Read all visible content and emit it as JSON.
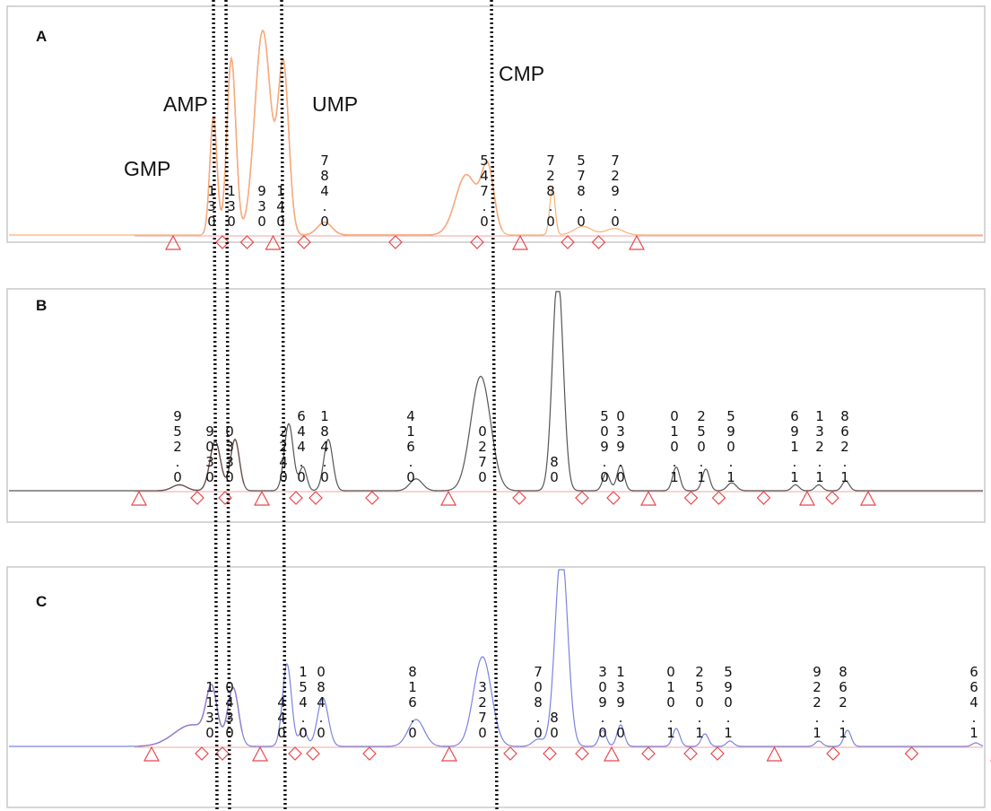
{
  "chart_data": {
    "type": "line",
    "panels": [
      {
        "panel": "A",
        "color": "#f7b27a",
        "fill_color": "#ee4a3a",
        "compound_labels": [
          "GMP",
          "AMP",
          "UMP",
          "CMP"
        ],
        "peaks": [
          {
            "x": 238,
            "h": 0.55,
            "w": 4
          },
          {
            "x": 258,
            "h": 0.82,
            "w": 5
          },
          {
            "x": 293,
            "h": 0.95,
            "w": 9
          },
          {
            "x": 316,
            "h": 0.78,
            "w": 6
          },
          {
            "x": 362,
            "h": 0.06,
            "w": 8
          },
          {
            "x": 520,
            "h": 0.28,
            "w": 12
          },
          {
            "x": 544,
            "h": 0.3,
            "w": 7
          },
          {
            "x": 616,
            "h": 0.22,
            "w": 3
          },
          {
            "x": 650,
            "h": 0.04,
            "w": 10
          },
          {
            "x": 685,
            "h": 0.03,
            "w": 10
          }
        ],
        "vertical_labels": [
          {
            "x": 236,
            "text": "130"
          },
          {
            "x": 258,
            "text": "130"
          },
          {
            "x": 292,
            "text": "930"
          },
          {
            "x": 313,
            "text": "140"
          },
          {
            "x": 362,
            "text": "784.0"
          },
          {
            "x": 540,
            "text": "547.0"
          },
          {
            "x": 614,
            "text": "728.0"
          },
          {
            "x": 648,
            "text": "578.0"
          },
          {
            "x": 686,
            "text": "729.0"
          }
        ]
      },
      {
        "panel": "B",
        "color": "#555555",
        "fill_color": "#ee4a3a",
        "compound_labels": [],
        "peaks": [
          {
            "x": 200,
            "h": 0.03,
            "w": 8
          },
          {
            "x": 240,
            "h": 0.25,
            "w": 6
          },
          {
            "x": 262,
            "h": 0.26,
            "w": 5
          },
          {
            "x": 322,
            "h": 0.34,
            "w": 5
          },
          {
            "x": 338,
            "h": 0.12,
            "w": 4
          },
          {
            "x": 366,
            "h": 0.26,
            "w": 5
          },
          {
            "x": 464,
            "h": 0.06,
            "w": 7
          },
          {
            "x": 536,
            "h": 0.58,
            "w": 11
          },
          {
            "x": 622,
            "h": 1.1,
            "w": 6
          },
          {
            "x": 676,
            "h": 0.09,
            "w": 4
          },
          {
            "x": 692,
            "h": 0.13,
            "w": 4
          },
          {
            "x": 754,
            "h": 0.12,
            "w": 4
          },
          {
            "x": 787,
            "h": 0.11,
            "w": 4
          },
          {
            "x": 816,
            "h": 0.04,
            "w": 5
          },
          {
            "x": 887,
            "h": 0.03,
            "w": 4
          },
          {
            "x": 913,
            "h": 0.03,
            "w": 4
          },
          {
            "x": 943,
            "h": 0.05,
            "w": 4
          }
        ],
        "vertical_labels": [
          {
            "x": 198,
            "text": "952.0"
          },
          {
            "x": 234,
            "text": "9030"
          },
          {
            "x": 256,
            "text": "0330"
          },
          {
            "x": 316,
            "text": "2240"
          },
          {
            "x": 336,
            "text": "644.0"
          },
          {
            "x": 362,
            "text": "184.0"
          },
          {
            "x": 458,
            "text": "416.0"
          },
          {
            "x": 538,
            "text": "0270"
          },
          {
            "x": 618,
            "text": "80"
          },
          {
            "x": 674,
            "text": "509.0"
          },
          {
            "x": 692,
            "text": "039.0"
          },
          {
            "x": 752,
            "text": "010.1"
          },
          {
            "x": 782,
            "text": "250.1"
          },
          {
            "x": 815,
            "text": "590.1"
          },
          {
            "x": 886,
            "text": "691.1"
          },
          {
            "x": 914,
            "text": "132.1"
          },
          {
            "x": 942,
            "text": "862.1"
          }
        ]
      },
      {
        "panel": "C",
        "color": "#7b83e0",
        "fill_color": "#ee4a3a",
        "compound_labels": [],
        "peaks": [
          {
            "x": 214,
            "h": 0.12,
            "w": 20
          },
          {
            "x": 236,
            "h": 0.28,
            "w": 6
          },
          {
            "x": 260,
            "h": 0.32,
            "w": 6
          },
          {
            "x": 320,
            "h": 0.46,
            "w": 5
          },
          {
            "x": 338,
            "h": 0.1,
            "w": 4
          },
          {
            "x": 360,
            "h": 0.27,
            "w": 6
          },
          {
            "x": 464,
            "h": 0.15,
            "w": 9
          },
          {
            "x": 538,
            "h": 0.5,
            "w": 10
          },
          {
            "x": 600,
            "h": 0.04,
            "w": 6
          },
          {
            "x": 626,
            "h": 1.1,
            "w": 7
          },
          {
            "x": 672,
            "h": 0.09,
            "w": 4
          },
          {
            "x": 692,
            "h": 0.12,
            "w": 4
          },
          {
            "x": 754,
            "h": 0.1,
            "w": 4
          },
          {
            "x": 786,
            "h": 0.07,
            "w": 4
          },
          {
            "x": 814,
            "h": 0.03,
            "w": 4
          },
          {
            "x": 913,
            "h": 0.03,
            "w": 4
          },
          {
            "x": 945,
            "h": 0.09,
            "w": 4
          },
          {
            "x": 1088,
            "h": 0.02,
            "w": 4
          }
        ],
        "vertical_labels": [
          {
            "x": 234,
            "text": "1130"
          },
          {
            "x": 256,
            "text": "0430"
          },
          {
            "x": 314,
            "text": "440"
          },
          {
            "x": 338,
            "text": "154.0"
          },
          {
            "x": 358,
            "text": "084.0"
          },
          {
            "x": 460,
            "text": "816.0"
          },
          {
            "x": 538,
            "text": "3270"
          },
          {
            "x": 600,
            "text": "708.0"
          },
          {
            "x": 618,
            "text": "80"
          },
          {
            "x": 672,
            "text": "309.0"
          },
          {
            "x": 692,
            "text": "139.0"
          },
          {
            "x": 748,
            "text": "010.1"
          },
          {
            "x": 780,
            "text": "250.1"
          },
          {
            "x": 812,
            "text": "590.1"
          },
          {
            "x": 911,
            "text": "922.1"
          },
          {
            "x": 940,
            "text": "862.1"
          },
          {
            "x": 1086,
            "text": "664.1"
          }
        ]
      }
    ],
    "reference_lines_x": [
      238,
      252,
      314,
      548
    ],
    "marker_color": "#e8474c"
  }
}
